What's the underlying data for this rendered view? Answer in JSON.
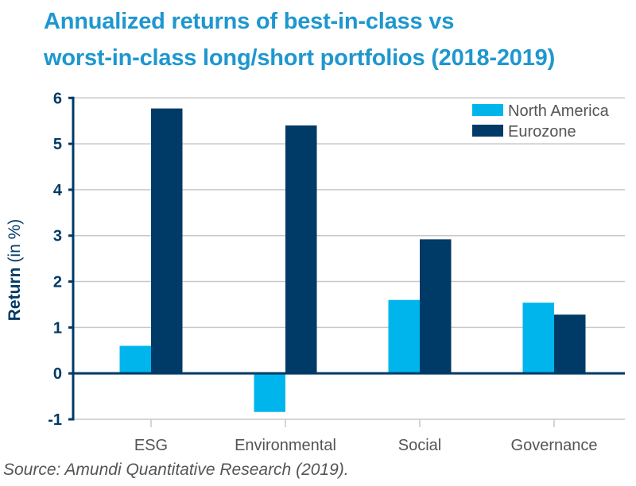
{
  "chart_data": {
    "type": "bar",
    "title": "Annualized returns of best-in-class vs worst-in-class long/short portfolios (2018-2019)",
    "title_lines": [
      "Annualized returns of best-in-class vs",
      "worst-in-class long/short portfolios (2018-2019)"
    ],
    "xlabel": "",
    "ylabel": "Return",
    "ylabel_unit": "(in %)",
    "ylim": [
      -1,
      6
    ],
    "yticks": [
      -1,
      0,
      1,
      2,
      3,
      4,
      5,
      6
    ],
    "grid": true,
    "legend_position": "top-right",
    "categories": [
      "ESG",
      "Environmental",
      "Social",
      "Governance"
    ],
    "series": [
      {
        "name": "North America",
        "color": "#00b5ec",
        "values": [
          0.6,
          -0.84,
          1.6,
          1.54
        ]
      },
      {
        "name": "Eurozone",
        "color": "#003a66",
        "values": [
          5.77,
          5.4,
          2.92,
          1.28
        ]
      }
    ],
    "source": "Source: Amundi Quantitative Research (2019)."
  },
  "colors": {
    "title": "#1e97cf",
    "axis": "#003a66",
    "grid": "#c8c8c8",
    "tick_label": "#003a66",
    "category_label": "#555555"
  }
}
